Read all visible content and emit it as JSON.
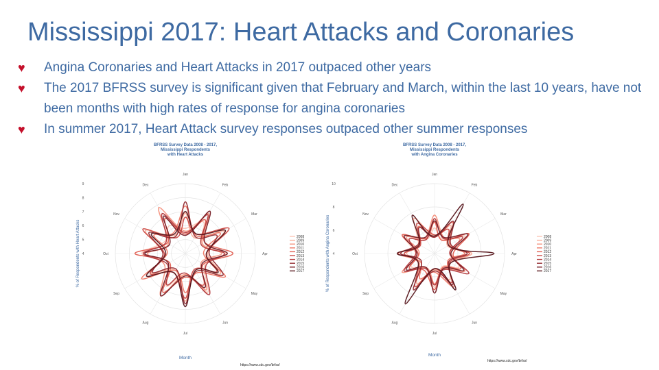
{
  "title": "Mississippi 2017: Heart Attacks and Coronaries",
  "bullets": [
    "Angina Coronaries and Heart Attacks in 2017 outpaced other years",
    "The 2017 BFRSS survey is significant given that February and March, within the last 10 years, have not been months with high rates of response for angina coronaries",
    "In summer 2017, Heart Attack survey responses outpaced other summer responses"
  ],
  "colors": {
    "title": "#3e6aa2",
    "bullet_marker": "#c4102b",
    "series": [
      "#fcc6b6",
      "#f9ad99",
      "#f5937f",
      "#ee7765",
      "#e25f52",
      "#cc4a45",
      "#b2383b",
      "#942b31",
      "#761f27",
      "#56151b"
    ]
  },
  "chart_data": [
    {
      "type": "radar",
      "title": "BFRSS Survey Data 2008 - 2017,\nMississippi Respondents\nwith Heart Attacks",
      "xlabel": "Month",
      "ylabel": "% of Respondents with Heart Attacks",
      "categories": [
        "Jan",
        "Feb",
        "Mar",
        "Apr",
        "May",
        "Jun",
        "Jul",
        "Aug",
        "Sep",
        "Oct",
        "Nov",
        "Dec"
      ],
      "radial_ticks": [
        4,
        5,
        6,
        7,
        8,
        9
      ],
      "rlim": [
        4,
        9
      ],
      "legend": "right",
      "source": "https://www.cdc.gov/brfss/",
      "series": [
        {
          "name": "2008",
          "values": [
            5.8,
            6.6,
            5.4,
            6.9,
            5.6,
            7.2,
            5.5,
            6.7,
            5.3,
            7.1,
            5.7,
            6.3
          ]
        },
        {
          "name": "2009",
          "values": [
            6.9,
            5.3,
            7.2,
            5.6,
            6.9,
            5.5,
            7.4,
            5.4,
            6.8,
            5.6,
            7.3,
            5.5
          ]
        },
        {
          "name": "2010",
          "values": [
            5.6,
            7.3,
            5.4,
            6.6,
            5.3,
            7.0,
            5.5,
            7.5,
            5.7,
            6.7,
            5.4,
            7.8
          ]
        },
        {
          "name": "2011",
          "values": [
            7.4,
            5.5,
            6.9,
            5.3,
            7.3,
            5.6,
            6.8,
            5.4,
            7.6,
            5.3,
            6.6,
            5.7
          ]
        },
        {
          "name": "2012",
          "values": [
            5.4,
            6.8,
            5.6,
            7.4,
            5.5,
            6.6,
            5.7,
            7.2,
            5.3,
            7.6,
            5.5,
            6.9
          ]
        },
        {
          "name": "2013",
          "values": [
            6.6,
            5.6,
            7.6,
            5.5,
            6.6,
            5.3,
            7.2,
            5.6,
            6.9,
            5.5,
            7.5,
            5.3
          ]
        },
        {
          "name": "2014",
          "values": [
            5.5,
            7.2,
            5.3,
            6.8,
            5.7,
            7.4,
            5.4,
            6.6,
            5.5,
            7.0,
            5.6,
            7.3
          ]
        },
        {
          "name": "2015",
          "values": [
            7.7,
            5.4,
            6.6,
            5.7,
            7.1,
            5.5,
            7.6,
            5.3,
            6.7,
            5.6,
            7.0,
            5.4
          ]
        },
        {
          "name": "2016",
          "values": [
            5.3,
            7.5,
            5.6,
            7.0,
            5.4,
            6.8,
            5.6,
            7.5,
            5.4,
            6.9,
            5.3,
            7.1
          ]
        },
        {
          "name": "2017",
          "values": [
            7.0,
            5.6,
            7.3,
            5.5,
            6.7,
            5.4,
            7.8,
            5.6,
            7.2,
            5.4,
            6.8,
            5.6
          ]
        }
      ]
    },
    {
      "type": "radar",
      "title": "BFRSS Survey Data 2008 - 2017,\nMississippi Respondents\nwith Angina Coronaries",
      "xlabel": "Month",
      "ylabel": "% of Respondents with Angina Coronaries",
      "categories": [
        "Jan",
        "Feb",
        "Mar",
        "Apr",
        "May",
        "Jun",
        "Jul",
        "Aug",
        "Sep",
        "Oct",
        "Nov",
        "Dec"
      ],
      "radial_ticks": [
        4,
        6,
        8,
        10
      ],
      "rlim": [
        4,
        10
      ],
      "legend": "right",
      "source": "https://www.cdc.gov/brfss/",
      "series": [
        {
          "name": "2008",
          "values": [
            6.2,
            5.4,
            7.0,
            5.6,
            6.4,
            5.3,
            6.9,
            5.5,
            6.3,
            5.6,
            7.1,
            5.4
          ]
        },
        {
          "name": "2009",
          "values": [
            5.5,
            6.8,
            5.3,
            7.2,
            5.6,
            6.6,
            5.4,
            7.0,
            5.5,
            6.4,
            5.6,
            7.5
          ]
        },
        {
          "name": "2010",
          "values": [
            7.3,
            5.6,
            6.5,
            5.4,
            7.0,
            5.5,
            6.6,
            5.4,
            7.2,
            5.3,
            6.8,
            5.6
          ]
        },
        {
          "name": "2011",
          "values": [
            5.4,
            7.1,
            5.5,
            6.6,
            5.3,
            7.3,
            5.6,
            6.5,
            5.4,
            7.1,
            5.5,
            6.7
          ]
        },
        {
          "name": "2012",
          "values": [
            6.7,
            5.3,
            7.4,
            5.6,
            6.6,
            5.4,
            7.1,
            5.7,
            6.5,
            5.4,
            7.2,
            5.5
          ]
        },
        {
          "name": "2013",
          "values": [
            5.6,
            6.4,
            5.4,
            7.0,
            5.5,
            6.9,
            5.3,
            7.3,
            5.6,
            6.6,
            5.4,
            7.0
          ]
        },
        {
          "name": "2014",
          "values": [
            7.0,
            5.5,
            6.8,
            5.3,
            7.4,
            5.6,
            6.7,
            5.5,
            7.0,
            5.6,
            6.5,
            5.4
          ]
        },
        {
          "name": "2015",
          "values": [
            5.4,
            7.2,
            5.6,
            6.8,
            5.4,
            7.1,
            5.5,
            7.6,
            5.3,
            6.9,
            5.6,
            6.6
          ]
        },
        {
          "name": "2016",
          "values": [
            6.8,
            5.6,
            7.3,
            5.4,
            6.9,
            5.5,
            7.4,
            5.4,
            6.8,
            5.5,
            7.0,
            5.6
          ]
        },
        {
          "name": "2017",
          "values": [
            5.5,
            8.9,
            5.4,
            9.1,
            5.6,
            7.6,
            5.3,
            9.0,
            5.6,
            7.2,
            5.5,
            7.8
          ]
        }
      ]
    }
  ]
}
